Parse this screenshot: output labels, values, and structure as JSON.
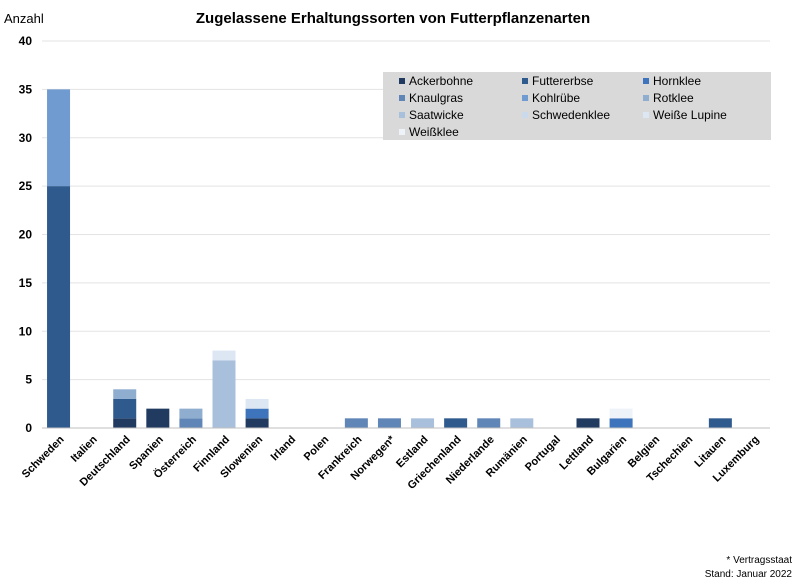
{
  "chart_data": {
    "type": "bar",
    "stacked": true,
    "title": "Zugelassene Erhaltungssorten von Futterpflanzenarten",
    "ylabel": "Anzahl",
    "ylim": [
      0,
      40
    ],
    "yticks": [
      0,
      5,
      10,
      15,
      20,
      25,
      30,
      35,
      40
    ],
    "grid": true,
    "legend_position": "top-right",
    "categories": [
      "Schweden",
      "Italien",
      "Deutschland",
      "Spanien",
      "Österreich",
      "Finnland",
      "Slowenien",
      "Irland",
      "Polen",
      "Frankreich",
      "Norwegen*",
      "Estland",
      "Griechenland",
      "Niederlande",
      "Rumänien",
      "Portugal",
      "Lettland",
      "Bulgarien",
      "Belgien",
      "Tschechien",
      "Litauen",
      "Luxemburg"
    ],
    "series": [
      {
        "name": "Ackerbohne",
        "color": "#203a60",
        "values": [
          0,
          0,
          1,
          2,
          0,
          0,
          1,
          0,
          0,
          0,
          0,
          0,
          0,
          0,
          0,
          0,
          1,
          0,
          0,
          0,
          0,
          0
        ]
      },
      {
        "name": "Futtererbse",
        "color": "#2f5a8e",
        "values": [
          25,
          0,
          2,
          0,
          0,
          0,
          0,
          0,
          0,
          0,
          0,
          0,
          1,
          0,
          0,
          0,
          0,
          0,
          0,
          0,
          1,
          0
        ]
      },
      {
        "name": "Hornklee",
        "color": "#3e74bb",
        "values": [
          0,
          0,
          0,
          0,
          0,
          0,
          1,
          0,
          0,
          0,
          0,
          0,
          0,
          0,
          0,
          0,
          0,
          1,
          0,
          0,
          0,
          0
        ]
      },
      {
        "name": "Knaulgras",
        "color": "#5f86b6",
        "values": [
          0,
          0,
          0,
          0,
          1,
          0,
          0,
          0,
          0,
          1,
          1,
          0,
          0,
          1,
          0,
          0,
          0,
          0,
          0,
          0,
          0,
          0
        ]
      },
      {
        "name": "Kohlrübe",
        "color": "#6f9bd0",
        "values": [
          10,
          0,
          0,
          0,
          0,
          0,
          0,
          0,
          0,
          0,
          0,
          0,
          0,
          0,
          0,
          0,
          0,
          0,
          0,
          0,
          0,
          0
        ]
      },
      {
        "name": "Rotklee",
        "color": "#8fadcf",
        "values": [
          0,
          0,
          1,
          0,
          1,
          0,
          0,
          0,
          0,
          0,
          0,
          0,
          0,
          0,
          0,
          0,
          0,
          0,
          0,
          0,
          0,
          0
        ]
      },
      {
        "name": "Saatwicke",
        "color": "#a9c0dc",
        "values": [
          0,
          0,
          0,
          0,
          0,
          7,
          0,
          0,
          0,
          0,
          0,
          1,
          0,
          0,
          1,
          0,
          0,
          0,
          0,
          0,
          0,
          0
        ]
      },
      {
        "name": "Schwedenklee",
        "color": "#cad9ec",
        "values": [
          0,
          0,
          0,
          0,
          0,
          0,
          0,
          0,
          0,
          0,
          0,
          0,
          0,
          0,
          0,
          0,
          0,
          0,
          0,
          0,
          0,
          0
        ]
      },
      {
        "name": "Weiße Lupine",
        "color": "#dde7f4",
        "values": [
          0,
          0,
          0,
          0,
          0,
          1,
          1,
          0,
          0,
          0,
          0,
          0,
          0,
          0,
          0,
          0,
          0,
          0,
          0,
          0,
          0,
          0
        ]
      },
      {
        "name": "Weißklee",
        "color": "#eef3fa",
        "values": [
          0,
          0,
          0,
          0,
          0,
          0,
          0,
          0,
          0,
          0,
          0,
          0,
          0,
          0,
          0,
          0,
          0,
          1,
          0,
          0,
          0,
          0
        ]
      }
    ]
  },
  "footnote": {
    "note": "* Vertragsstaat",
    "stand": "Stand: Januar 2022"
  }
}
